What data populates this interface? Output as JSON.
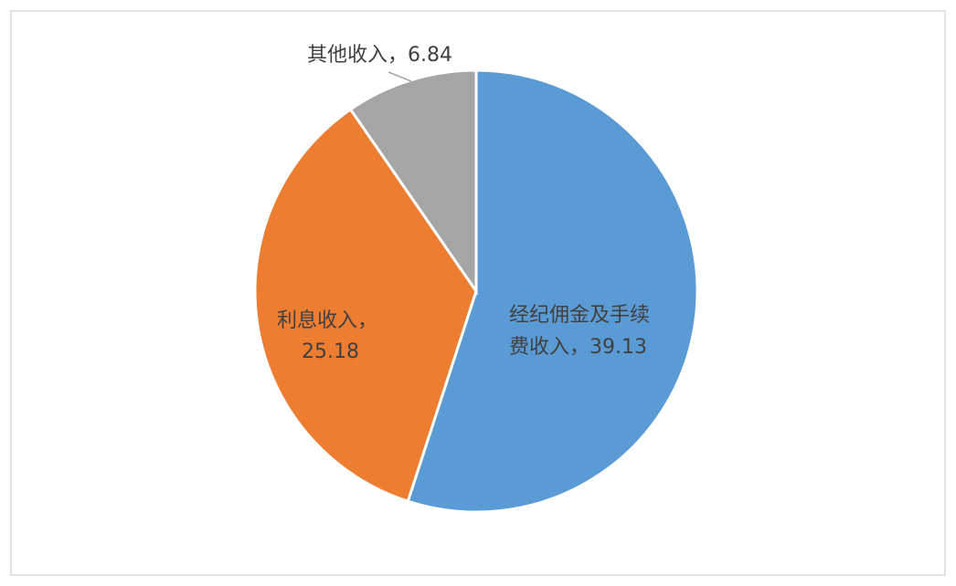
{
  "chart_data": {
    "type": "pie",
    "start_angle": "top",
    "direction": "clockwise",
    "slices": [
      {
        "name": "经纪佣金及手续费收入",
        "value": 39.13,
        "color": "#5b9bd5",
        "label_lines": [
          "经纪佣金及手续",
          "费收入，39.13"
        ]
      },
      {
        "name": "利息收入",
        "value": 25.18,
        "color": "#ed7d31",
        "label_lines": [
          "利息收入，",
          "25.18"
        ]
      },
      {
        "name": "其他收入",
        "value": 6.84,
        "color": "#a5a5a5",
        "label_lines": [
          "其他收入，6.84"
        ]
      }
    ],
    "legend": "none"
  }
}
